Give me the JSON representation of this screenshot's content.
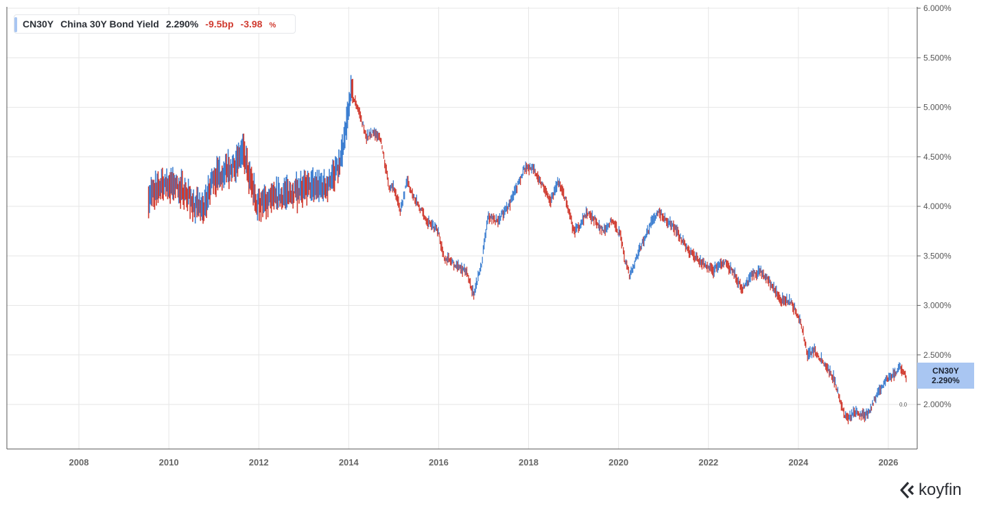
{
  "legend": {
    "ticker": "CN30Y",
    "name": "China 30Y Bond Yield",
    "value": "2.290%",
    "change_bp": "-9.5bp",
    "change_pct": "-3.98",
    "change_pct_unit": "%"
  },
  "badge": {
    "ticker": "CN30Y",
    "value": "2.290%"
  },
  "zero_tag": "0.0",
  "brand": {
    "name": "koyfin"
  },
  "colors": {
    "up": "#3d7fd1",
    "down": "#d03a2f",
    "grid": "#e6e6e6",
    "badge": "#a9c6f2"
  },
  "chart_data": {
    "type": "ohlc",
    "series_name": "CN30Y",
    "y_unit": "%",
    "ylim": [
      1.6,
      6.0
    ],
    "xlim": [
      2006.5,
      2026.8
    ],
    "grid": true,
    "y_ticks": [
      "2.000%",
      "2.500%",
      "3.000%",
      "3.500%",
      "4.000%",
      "4.500%",
      "5.000%",
      "5.500%",
      "6.000%"
    ],
    "x_ticks": [
      "2008",
      "2010",
      "2012",
      "2014",
      "2016",
      "2018",
      "2020",
      "2022",
      "2024",
      "2026"
    ],
    "path": [
      [
        2009.55,
        4.1
      ],
      [
        2009.8,
        4.2
      ],
      [
        2010.0,
        4.22
      ],
      [
        2010.2,
        4.2
      ],
      [
        2010.35,
        4.15
      ],
      [
        2010.6,
        4.0
      ],
      [
        2010.8,
        3.98
      ],
      [
        2010.95,
        4.25
      ],
      [
        2011.2,
        4.35
      ],
      [
        2011.45,
        4.4
      ],
      [
        2011.65,
        4.55
      ],
      [
        2011.8,
        4.3
      ],
      [
        2011.95,
        4.05
      ],
      [
        2012.2,
        4.05
      ],
      [
        2012.5,
        4.1
      ],
      [
        2012.8,
        4.15
      ],
      [
        2013.2,
        4.2
      ],
      [
        2013.5,
        4.2
      ],
      [
        2013.8,
        4.4
      ],
      [
        2013.95,
        4.8
      ],
      [
        2014.05,
        5.15
      ],
      [
        2014.2,
        5.0
      ],
      [
        2014.4,
        4.7
      ],
      [
        2014.55,
        4.75
      ],
      [
        2014.7,
        4.7
      ],
      [
        2014.9,
        4.2
      ],
      [
        2015.0,
        4.2
      ],
      [
        2015.15,
        3.95
      ],
      [
        2015.3,
        4.25
      ],
      [
        2015.5,
        4.05
      ],
      [
        2015.75,
        3.85
      ],
      [
        2016.0,
        3.75
      ],
      [
        2016.1,
        3.5
      ],
      [
        2016.4,
        3.4
      ],
      [
        2016.6,
        3.35
      ],
      [
        2016.78,
        3.12
      ],
      [
        2016.95,
        3.4
      ],
      [
        2017.1,
        3.9
      ],
      [
        2017.3,
        3.85
      ],
      [
        2017.55,
        4.0
      ],
      [
        2017.75,
        4.2
      ],
      [
        2017.9,
        4.38
      ],
      [
        2018.1,
        4.38
      ],
      [
        2018.3,
        4.22
      ],
      [
        2018.5,
        4.05
      ],
      [
        2018.65,
        4.25
      ],
      [
        2018.85,
        4.05
      ],
      [
        2019.0,
        3.75
      ],
      [
        2019.15,
        3.8
      ],
      [
        2019.3,
        3.95
      ],
      [
        2019.5,
        3.85
      ],
      [
        2019.65,
        3.75
      ],
      [
        2019.85,
        3.85
      ],
      [
        2020.05,
        3.7
      ],
      [
        2020.15,
        3.45
      ],
      [
        2020.25,
        3.3
      ],
      [
        2020.45,
        3.55
      ],
      [
        2020.7,
        3.8
      ],
      [
        2020.88,
        3.95
      ],
      [
        2021.1,
        3.85
      ],
      [
        2021.3,
        3.75
      ],
      [
        2021.55,
        3.55
      ],
      [
        2021.8,
        3.45
      ],
      [
        2022.1,
        3.35
      ],
      [
        2022.35,
        3.45
      ],
      [
        2022.6,
        3.3
      ],
      [
        2022.75,
        3.15
      ],
      [
        2022.95,
        3.3
      ],
      [
        2023.15,
        3.35
      ],
      [
        2023.35,
        3.25
      ],
      [
        2023.6,
        3.05
      ],
      [
        2023.8,
        3.05
      ],
      [
        2023.95,
        2.95
      ],
      [
        2024.1,
        2.75
      ],
      [
        2024.2,
        2.5
      ],
      [
        2024.35,
        2.55
      ],
      [
        2024.6,
        2.4
      ],
      [
        2024.8,
        2.25
      ],
      [
        2024.9,
        2.1
      ],
      [
        2025.0,
        1.92
      ],
      [
        2025.1,
        1.85
      ],
      [
        2025.25,
        1.92
      ],
      [
        2025.45,
        1.88
      ],
      [
        2025.6,
        1.95
      ],
      [
        2025.8,
        2.15
      ],
      [
        2025.95,
        2.25
      ],
      [
        2026.15,
        2.32
      ],
      [
        2026.25,
        2.38
      ],
      [
        2026.4,
        2.28
      ]
    ]
  }
}
